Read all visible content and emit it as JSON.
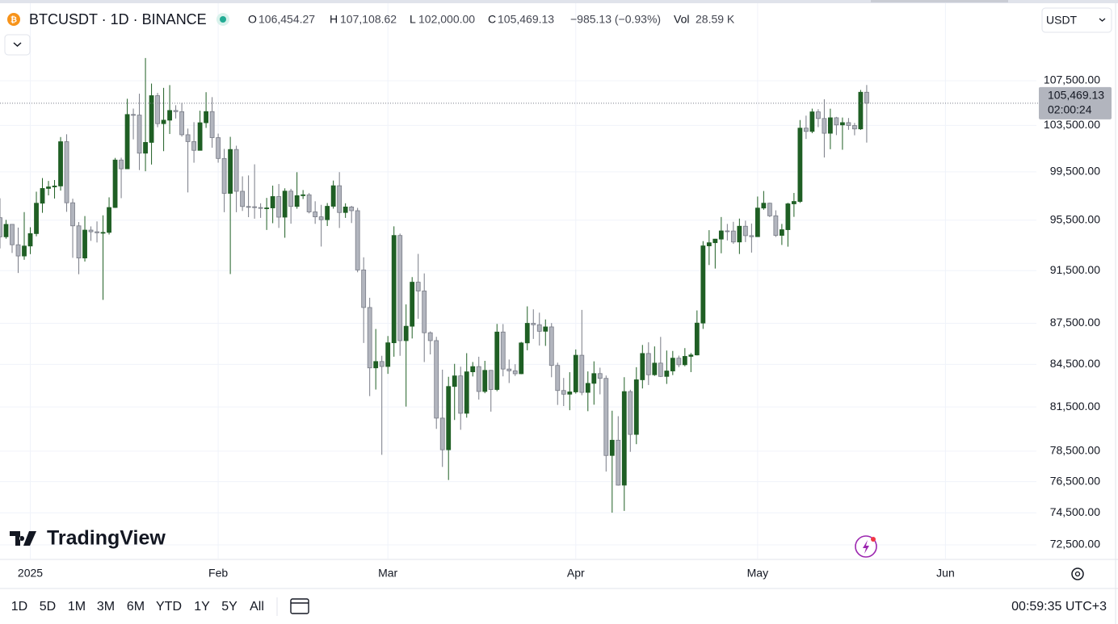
{
  "header": {
    "symbol": "BTCUSDT · 1D · BINANCE",
    "o_label": "O",
    "open": "106,454.27",
    "h_label": "H",
    "high": "107,108.62",
    "l_label": "L",
    "low": "102,000.00",
    "c_label": "C",
    "close": "105,469.13",
    "change": "−985.13 (−0.93%)",
    "vol_label": "Vol",
    "volume": "28.59 K",
    "currency": "USDT"
  },
  "chart_data": {
    "type": "candlestick",
    "log_scale": true,
    "grid": true,
    "colors": {
      "up": "#1f5f24",
      "down": "#b2b5be",
      "down_border": "#787b86"
    },
    "last_price": {
      "value": 105469.13,
      "label": "105,469.13",
      "countdown": "02:00:24"
    },
    "xlim": [
      0,
      171
    ],
    "xticks": [
      {
        "value": 5,
        "label": "2025"
      },
      {
        "value": 36,
        "label": "Feb"
      },
      {
        "value": 64,
        "label": "Mar"
      },
      {
        "value": 95,
        "label": "Apr"
      },
      {
        "value": 125,
        "label": "May"
      },
      {
        "value": 156,
        "label": "Jun"
      }
    ],
    "ylim": [
      71660,
      112240
    ],
    "yticks": [
      {
        "value": 72500,
        "label": "72,500.00"
      },
      {
        "value": 74500,
        "label": "74,500.00"
      },
      {
        "value": 76500,
        "label": "76,500.00"
      },
      {
        "value": 78500,
        "label": "78,500.00"
      },
      {
        "value": 81500,
        "label": "81,500.00"
      },
      {
        "value": 84500,
        "label": "84,500.00"
      },
      {
        "value": 87500,
        "label": "87,500.00"
      },
      {
        "value": 91500,
        "label": "91,500.00"
      },
      {
        "value": 95500,
        "label": "95,500.00"
      },
      {
        "value": 99500,
        "label": "99,500.00"
      },
      {
        "value": 103500,
        "label": "103,500.00"
      },
      {
        "value": 107500,
        "label": "107,500.00"
      }
    ],
    "ohlc": [
      [
        95704,
        97294,
        93236,
        94164
      ],
      [
        94164,
        95525,
        94014,
        95163
      ],
      [
        95163,
        95174,
        92881,
        93530
      ],
      [
        93530,
        94903,
        91317,
        92643
      ],
      [
        92643,
        96158,
        92345,
        93429
      ],
      [
        93429,
        94929,
        92789,
        94419
      ],
      [
        94419,
        97839,
        94202,
        96886
      ],
      [
        96886,
        98976,
        96100,
        98107
      ],
      [
        98107,
        98734,
        97532,
        98236
      ],
      [
        98236,
        98813,
        97271,
        98314
      ],
      [
        98314,
        102482,
        97926,
        102078
      ],
      [
        102078,
        102724,
        96181,
        96922
      ],
      [
        96922,
        97258,
        92500,
        95043
      ],
      [
        95043,
        95349,
        91220,
        92484
      ],
      [
        92484,
        95836,
        92206,
        94701
      ],
      [
        94701,
        95000,
        93840,
        94566
      ],
      [
        94566,
        95400,
        93712,
        94488
      ],
      [
        94488,
        95895,
        89256,
        94516
      ],
      [
        94516,
        97371,
        94346,
        96534
      ],
      [
        96534,
        100681,
        96500,
        100504
      ],
      [
        100504,
        100700,
        97300,
        99756
      ],
      [
        99756,
        105865,
        99950,
        104462
      ],
      [
        104462,
        104988,
        102278,
        104408
      ],
      [
        104408,
        106322,
        99651,
        101089
      ],
      [
        101089,
        109588,
        99550,
        102016
      ],
      [
        102016,
        107240,
        100119,
        106146
      ],
      [
        106146,
        106394,
        103339,
        103653
      ],
      [
        103653,
        106850,
        101262,
        103960
      ],
      [
        103960,
        107100,
        102750,
        104819
      ],
      [
        104819,
        105286,
        104106,
        104714
      ],
      [
        104714,
        105500,
        102520,
        102682
      ],
      [
        102682,
        103221,
        97777,
        102088
      ],
      [
        102088,
        103784,
        100273,
        101332
      ],
      [
        101332,
        104800,
        101328,
        103733
      ],
      [
        103733,
        106457,
        103278,
        104722
      ],
      [
        104722,
        106012,
        101560,
        102429
      ],
      [
        102429,
        102783,
        100279,
        100635
      ],
      [
        100635,
        101456,
        96150,
        97700
      ],
      [
        97700,
        102500,
        91231,
        101406
      ],
      [
        101406,
        101732,
        96150,
        97871
      ],
      [
        97871,
        99120,
        96252,
        96615
      ],
      [
        96615,
        99197,
        95747,
        96593
      ],
      [
        96593,
        100137,
        95620,
        96529
      ],
      [
        96529,
        96880,
        95688,
        96482
      ],
      [
        96482,
        97323,
        94713,
        96500
      ],
      [
        96500,
        98345,
        95256,
        97437
      ],
      [
        97437,
        98478,
        94876,
        95747
      ],
      [
        95747,
        98119,
        94088,
        97885
      ],
      [
        97885,
        98076,
        95217,
        96623
      ],
      [
        96623,
        99470,
        96431,
        97508
      ],
      [
        97508,
        97975,
        97232,
        97580
      ],
      [
        97580,
        97725,
        96055,
        96175
      ],
      [
        96175,
        97046,
        95205,
        95773
      ],
      [
        95773,
        96753,
        93388,
        95539
      ],
      [
        95539,
        96899,
        95029,
        96635
      ],
      [
        96635,
        98766,
        96438,
        98333
      ],
      [
        98333,
        99475,
        94871,
        96125
      ],
      [
        96125,
        96880,
        95688,
        96577
      ],
      [
        96577,
        96671,
        95270,
        96273
      ],
      [
        96273,
        96503,
        91371,
        91552
      ],
      [
        91552,
        92540,
        86050,
        88680
      ],
      [
        88680,
        89414,
        82256,
        84250
      ],
      [
        84250,
        87078,
        82716,
        84708
      ],
      [
        84708,
        85120,
        78258,
        84350
      ],
      [
        84350,
        86558,
        83824,
        86064
      ],
      [
        86064,
        95000,
        85050,
        94270
      ],
      [
        94270,
        94416,
        85117,
        86220
      ],
      [
        86220,
        88912,
        81529,
        87281
      ],
      [
        87281,
        90998,
        86379,
        90606
      ],
      [
        90606,
        92810,
        87836,
        89931
      ],
      [
        89931,
        91283,
        84667,
        86801
      ],
      [
        86801,
        86897,
        85218,
        86222
      ],
      [
        86222,
        86500,
        80000,
        80735
      ],
      [
        80735,
        84123,
        77459,
        78595
      ],
      [
        78595,
        83617,
        76606,
        82932
      ],
      [
        82932,
        84539,
        80607,
        83680
      ],
      [
        83680,
        84336,
        79939,
        81067
      ],
      [
        81067,
        85309,
        80766,
        83969
      ],
      [
        83969,
        84672,
        83639,
        84343
      ],
      [
        84343,
        85051,
        82017,
        82580
      ],
      [
        82580,
        84757,
        82457,
        84075
      ],
      [
        84075,
        84100,
        81180,
        82718
      ],
      [
        82718,
        87453,
        82600,
        86854
      ],
      [
        86854,
        87443,
        83647,
        84167
      ],
      [
        84167,
        84850,
        83175,
        84043
      ],
      [
        84043,
        84513,
        83675,
        83832
      ],
      [
        83832,
        86129,
        83800,
        86054
      ],
      [
        86054,
        88765,
        85519,
        87498
      ],
      [
        87498,
        88542,
        86346,
        87392
      ],
      [
        87392,
        88292,
        85861,
        86909
      ],
      [
        86909,
        87786,
        85837,
        87232
      ],
      [
        87232,
        87515,
        83585,
        84424
      ],
      [
        84424,
        84624,
        81644,
        82648
      ],
      [
        82648,
        83534,
        81565,
        82390
      ],
      [
        82390,
        83943,
        81279,
        82550
      ],
      [
        82550,
        85579,
        82432,
        85158
      ],
      [
        85158,
        88500,
        82320,
        82517
      ],
      [
        82517,
        83998,
        81211,
        83152
      ],
      [
        83152,
        84720,
        81659,
        83844
      ],
      [
        83844,
        84266,
        82379,
        83504
      ],
      [
        83504,
        83705,
        77153,
        78214
      ],
      [
        78214,
        81243,
        74508,
        79235
      ],
      [
        79235,
        80867,
        76239,
        76271
      ],
      [
        76271,
        83588,
        74620,
        82573
      ],
      [
        82573,
        82700,
        78456,
        79626
      ],
      [
        79626,
        84300,
        78969,
        83404
      ],
      [
        83404,
        85905,
        82792,
        85287
      ],
      [
        85287,
        86100,
        83034,
        83760
      ],
      [
        83760,
        85799,
        83678,
        84591
      ],
      [
        84591,
        86496,
        83600,
        83643
      ],
      [
        83643,
        85500,
        83112,
        84030
      ],
      [
        84030,
        85470,
        83736,
        84947
      ],
      [
        84947,
        85132,
        84303,
        84474
      ],
      [
        84474,
        85677,
        84364,
        85077
      ],
      [
        85077,
        85320,
        83949,
        85179
      ],
      [
        85179,
        88460,
        85144,
        87516
      ],
      [
        87516,
        93817,
        87084,
        93442
      ],
      [
        93442,
        94696,
        91935,
        93691
      ],
      [
        93691,
        94000,
        91660,
        93980
      ],
      [
        93980,
        95758,
        92855,
        94638
      ],
      [
        94638,
        95199,
        93870,
        94628
      ],
      [
        94628,
        95369,
        93602,
        93750
      ],
      [
        93750,
        95630,
        92800,
        95012
      ],
      [
        95012,
        95461,
        93742,
        94256
      ],
      [
        94256,
        95228,
        92910,
        94172
      ],
      [
        94172,
        97437,
        94153,
        96489
      ],
      [
        96489,
        97895,
        96350,
        96887
      ],
      [
        96887,
        96935,
        95753,
        95856
      ],
      [
        95856,
        96304,
        94151,
        94277
      ],
      [
        94277,
        95199,
        93514,
        94733
      ],
      [
        94733,
        96920,
        93377,
        96835
      ],
      [
        96835,
        97732,
        95770,
        97030
      ],
      [
        97030,
        103971,
        96910,
        103261
      ],
      [
        103261,
        104361,
        102315,
        102971
      ],
      [
        102971,
        104984,
        102818,
        104696
      ],
      [
        104696,
        104937,
        103346,
        104107
      ],
      [
        104107,
        105819,
        100718,
        102812
      ],
      [
        102812,
        104976,
        101429,
        104170
      ],
      [
        104170,
        104250,
        102650,
        103539
      ],
      [
        103539,
        104192,
        101383,
        103744
      ],
      [
        103744,
        104150,
        103111,
        103489
      ],
      [
        103489,
        103718,
        102634,
        103191
      ],
      [
        103191,
        106660,
        103105,
        106454
      ],
      [
        106454,
        107108,
        102000,
        105469
      ]
    ]
  },
  "footer": {
    "brand": "TradingView",
    "ranges": [
      "1D",
      "5D",
      "1M",
      "3M",
      "6M",
      "YTD",
      "1Y",
      "5Y",
      "All"
    ],
    "clock": "00:59:35 UTC+3"
  }
}
